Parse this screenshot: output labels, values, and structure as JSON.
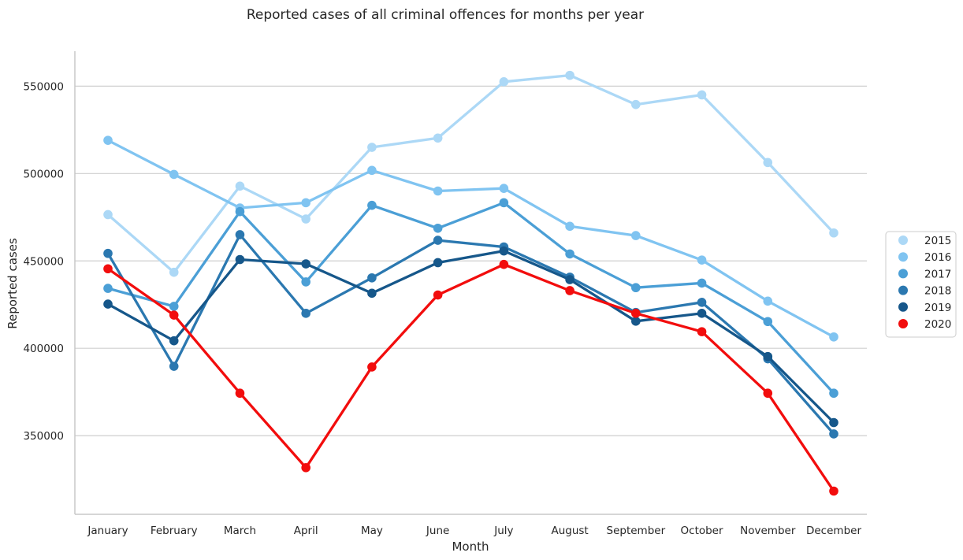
{
  "chart_data": {
    "type": "line",
    "title": "Reported cases of all criminal offences for months per year",
    "xlabel": "Month",
    "ylabel": "Reported cases",
    "categories": [
      "January",
      "February",
      "March",
      "April",
      "May",
      "June",
      "July",
      "August",
      "September",
      "October",
      "November",
      "December"
    ],
    "ylim": [
      305000,
      570000
    ],
    "yticks": [
      350000,
      400000,
      450000,
      500000,
      550000
    ],
    "ytick_labels": [
      "350000",
      "400000",
      "450000",
      "500000",
      "550000"
    ],
    "grid": "horizontal",
    "legend_position": "right",
    "series": [
      {
        "name": "2015",
        "color": "#acd8f6",
        "values": [
          476500,
          443500,
          492800,
          474000,
          515000,
          520300,
          552500,
          556200,
          539500,
          545000,
          506300,
          466000
        ]
      },
      {
        "name": "2016",
        "color": "#80c4f1",
        "values": [
          519000,
          499500,
          480300,
          483300,
          501800,
          490000,
          491500,
          469800,
          464500,
          450500,
          427000,
          406500
        ]
      },
      {
        "name": "2017",
        "color": "#4b9fd6",
        "values": [
          434300,
          424000,
          478200,
          438000,
          481800,
          468700,
          483300,
          454000,
          434700,
          437300,
          415300,
          374300
        ]
      },
      {
        "name": "2018",
        "color": "#2b78b0",
        "values": [
          454300,
          389700,
          465000,
          420000,
          440300,
          461800,
          458000,
          440700,
          420500,
          426300,
          394000,
          351000
        ]
      },
      {
        "name": "2019",
        "color": "#16578a",
        "values": [
          425300,
          404300,
          450800,
          448300,
          431500,
          449000,
          455700,
          439300,
          415500,
          420000,
          395300,
          357500
        ]
      },
      {
        "name": "2020",
        "color": "#f20d0d",
        "values": [
          445500,
          419000,
          374300,
          331700,
          389300,
          430500,
          448000,
          433000,
          420000,
          409500,
          374300,
          318300
        ]
      }
    ]
  }
}
